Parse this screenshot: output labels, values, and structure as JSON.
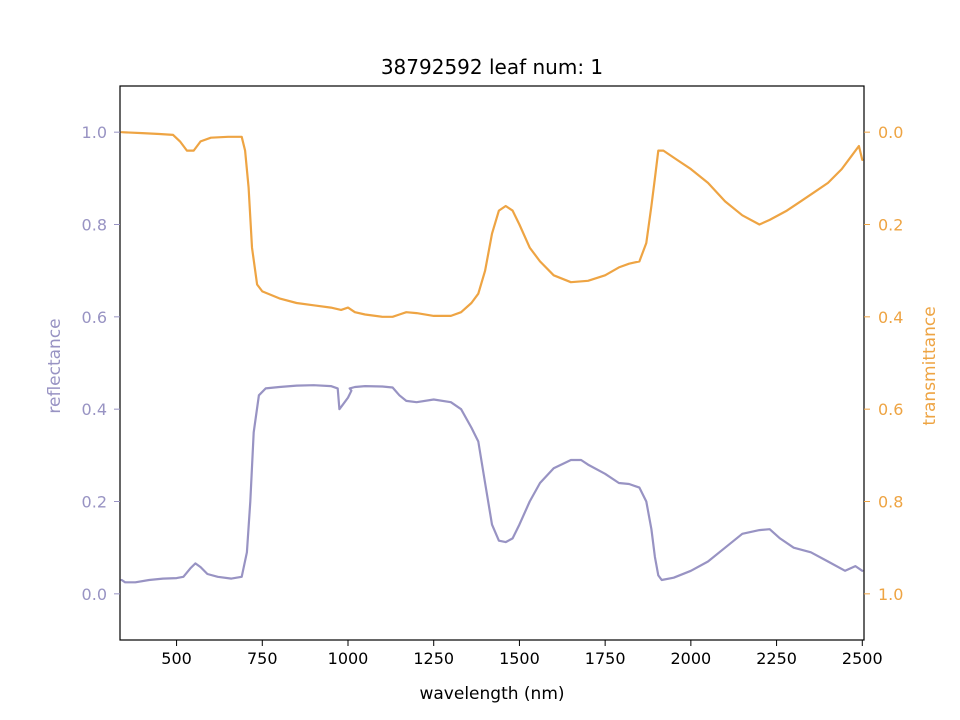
{
  "chart_data": {
    "type": "line",
    "title": "38792592 leaf num: 1",
    "xlabel": "wavelength (nm)",
    "ylabel_left": "reflectance",
    "ylabel_right": "transmittance",
    "xlim": [
      335,
      2505
    ],
    "ylim_left": [
      -0.1,
      1.1
    ],
    "ylim_right_inverted": [
      1.1,
      -0.1
    ],
    "x_ticks": [
      500,
      750,
      1000,
      1250,
      1500,
      1750,
      2000,
      2250,
      2500
    ],
    "x_tick_labels": [
      "500",
      "750",
      "1000",
      "1250",
      "1500",
      "1750",
      "2000",
      "2250",
      "2500"
    ],
    "left_ticks": [
      0.0,
      0.2,
      0.4,
      0.6,
      0.8,
      1.0
    ],
    "left_tick_labels": [
      "0.0",
      "0.2",
      "0.4",
      "0.6",
      "0.8",
      "1.0"
    ],
    "right_ticks": [
      0.0,
      0.2,
      0.4,
      0.6,
      0.8,
      1.0
    ],
    "right_tick_labels": [
      "0.0",
      "0.2",
      "0.4",
      "0.6",
      "0.8",
      "1.0"
    ],
    "grid": false,
    "colors": {
      "reflectance": "#9893c3",
      "transmittance": "#eea443"
    },
    "series": [
      {
        "axis": "left",
        "points": [
          [
            340,
            0.03
          ],
          [
            350,
            0.025
          ],
          [
            380,
            0.025
          ],
          [
            420,
            0.03
          ],
          [
            460,
            0.033
          ],
          [
            500,
            0.034
          ],
          [
            520,
            0.037
          ],
          [
            540,
            0.055
          ],
          [
            555,
            0.066
          ],
          [
            570,
            0.058
          ],
          [
            590,
            0.043
          ],
          [
            620,
            0.037
          ],
          [
            660,
            0.033
          ],
          [
            690,
            0.037
          ],
          [
            705,
            0.09
          ],
          [
            715,
            0.2
          ],
          [
            725,
            0.35
          ],
          [
            740,
            0.43
          ],
          [
            760,
            0.445
          ],
          [
            800,
            0.448
          ],
          [
            850,
            0.451
          ],
          [
            900,
            0.452
          ],
          [
            950,
            0.45
          ],
          [
            970,
            0.445
          ],
          [
            975,
            0.4
          ],
          [
            985,
            0.41
          ],
          [
            1000,
            0.425
          ],
          [
            1010,
            0.44
          ],
          [
            1005,
            0.445
          ],
          [
            1020,
            0.448
          ],
          [
            1050,
            0.45
          ],
          [
            1100,
            0.449
          ],
          [
            1130,
            0.447
          ],
          [
            1150,
            0.43
          ],
          [
            1170,
            0.418
          ],
          [
            1200,
            0.415
          ],
          [
            1250,
            0.421
          ],
          [
            1300,
            0.415
          ],
          [
            1330,
            0.4
          ],
          [
            1360,
            0.36
          ],
          [
            1380,
            0.33
          ],
          [
            1400,
            0.24
          ],
          [
            1420,
            0.15
          ],
          [
            1440,
            0.115
          ],
          [
            1460,
            0.112
          ],
          [
            1480,
            0.12
          ],
          [
            1500,
            0.15
          ],
          [
            1530,
            0.2
          ],
          [
            1560,
            0.24
          ],
          [
            1600,
            0.272
          ],
          [
            1650,
            0.29
          ],
          [
            1680,
            0.29
          ],
          [
            1700,
            0.28
          ],
          [
            1750,
            0.26
          ],
          [
            1790,
            0.24
          ],
          [
            1820,
            0.238
          ],
          [
            1850,
            0.23
          ],
          [
            1870,
            0.2
          ],
          [
            1885,
            0.14
          ],
          [
            1895,
            0.08
          ],
          [
            1905,
            0.04
          ],
          [
            1915,
            0.03
          ],
          [
            1950,
            0.035
          ],
          [
            2000,
            0.05
          ],
          [
            2050,
            0.07
          ],
          [
            2100,
            0.1
          ],
          [
            2150,
            0.13
          ],
          [
            2200,
            0.138
          ],
          [
            2230,
            0.14
          ],
          [
            2260,
            0.12
          ],
          [
            2300,
            0.1
          ],
          [
            2350,
            0.09
          ],
          [
            2400,
            0.07
          ],
          [
            2450,
            0.05
          ],
          [
            2480,
            0.06
          ],
          [
            2500,
            0.05
          ]
        ]
      },
      {
        "axis": "right",
        "points": [
          [
            340,
            0.0
          ],
          [
            400,
            0.002
          ],
          [
            450,
            0.004
          ],
          [
            490,
            0.006
          ],
          [
            510,
            0.02
          ],
          [
            530,
            0.04
          ],
          [
            550,
            0.04
          ],
          [
            570,
            0.02
          ],
          [
            600,
            0.012
          ],
          [
            650,
            0.01
          ],
          [
            690,
            0.01
          ],
          [
            700,
            0.04
          ],
          [
            710,
            0.12
          ],
          [
            720,
            0.25
          ],
          [
            735,
            0.33
          ],
          [
            750,
            0.345
          ],
          [
            800,
            0.36
          ],
          [
            850,
            0.37
          ],
          [
            900,
            0.375
          ],
          [
            950,
            0.38
          ],
          [
            980,
            0.385
          ],
          [
            1000,
            0.38
          ],
          [
            1020,
            0.39
          ],
          [
            1050,
            0.395
          ],
          [
            1100,
            0.4
          ],
          [
            1130,
            0.4
          ],
          [
            1150,
            0.395
          ],
          [
            1170,
            0.39
          ],
          [
            1200,
            0.392
          ],
          [
            1250,
            0.398
          ],
          [
            1300,
            0.398
          ],
          [
            1330,
            0.39
          ],
          [
            1360,
            0.37
          ],
          [
            1380,
            0.35
          ],
          [
            1400,
            0.3
          ],
          [
            1420,
            0.22
          ],
          [
            1440,
            0.17
          ],
          [
            1460,
            0.16
          ],
          [
            1480,
            0.17
          ],
          [
            1500,
            0.2
          ],
          [
            1530,
            0.25
          ],
          [
            1560,
            0.28
          ],
          [
            1600,
            0.31
          ],
          [
            1650,
            0.325
          ],
          [
            1700,
            0.322
          ],
          [
            1750,
            0.31
          ],
          [
            1790,
            0.293
          ],
          [
            1820,
            0.285
          ],
          [
            1850,
            0.28
          ],
          [
            1870,
            0.24
          ],
          [
            1885,
            0.16
          ],
          [
            1895,
            0.1
          ],
          [
            1905,
            0.04
          ],
          [
            1920,
            0.04
          ],
          [
            1960,
            0.06
          ],
          [
            2000,
            0.08
          ],
          [
            2050,
            0.11
          ],
          [
            2100,
            0.15
          ],
          [
            2150,
            0.18
          ],
          [
            2200,
            0.2
          ],
          [
            2230,
            0.19
          ],
          [
            2280,
            0.17
          ],
          [
            2320,
            0.15
          ],
          [
            2360,
            0.13
          ],
          [
            2400,
            0.11
          ],
          [
            2440,
            0.08
          ],
          [
            2470,
            0.05
          ],
          [
            2490,
            0.03
          ],
          [
            2500,
            0.06
          ]
        ]
      }
    ]
  }
}
